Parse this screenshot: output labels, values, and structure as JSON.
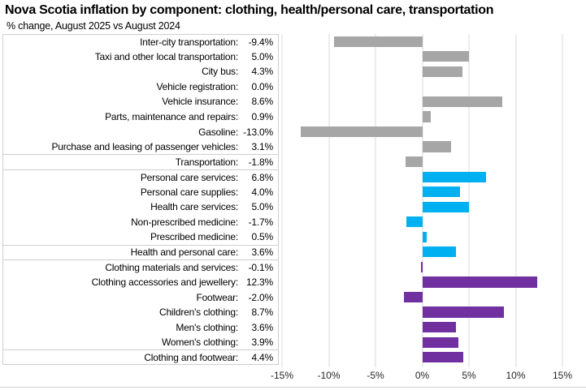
{
  "title": "Nova Scotia inflation by component: clothing, health/personal care, transportation",
  "subtitle": "% change, August 2025 vs August 2024",
  "colors": {
    "transportation": "#a6a6a6",
    "health_personal_care": "#00b0f0",
    "clothing": "#7030a0",
    "gridline": "#d9d9d9",
    "box_border": "#d0cece"
  },
  "chart_data": {
    "type": "bar",
    "orientation": "horizontal",
    "title": "Nova Scotia inflation by component: clothing, health/personal care, transportation",
    "subtitle": "% change, August 2025 vs August 2024",
    "unit": "%",
    "xlim": [
      -15,
      15
    ],
    "x_ticks": [
      "-15%",
      "-10%",
      "-5%",
      "0%",
      "5%",
      "10%",
      "15%"
    ],
    "grid": "vertical",
    "legend": "none",
    "rows": [
      {
        "label": "Inter-city transportation:",
        "value": -9.4,
        "display": "-9.4%",
        "group": "transportation",
        "summary": false
      },
      {
        "label": "Taxi and other local transportation:",
        "value": 5.0,
        "display": "5.0%",
        "group": "transportation",
        "summary": false
      },
      {
        "label": "City bus:",
        "value": 4.3,
        "display": "4.3%",
        "group": "transportation",
        "summary": false
      },
      {
        "label": "Vehicle registration:",
        "value": 0.0,
        "display": "0.0%",
        "group": "transportation",
        "summary": false
      },
      {
        "label": "Vehicle insurance:",
        "value": 8.6,
        "display": "8.6%",
        "group": "transportation",
        "summary": false
      },
      {
        "label": "Parts, maintenance and repairs:",
        "value": 0.9,
        "display": "0.9%",
        "group": "transportation",
        "summary": false
      },
      {
        "label": "Gasoline:",
        "value": -13.0,
        "display": "-13.0%",
        "group": "transportation",
        "summary": false
      },
      {
        "label": "Purchase and leasing of passenger vehicles:",
        "value": 3.1,
        "display": "3.1%",
        "group": "transportation",
        "summary": false
      },
      {
        "label": "Transportation:",
        "value": -1.8,
        "display": "-1.8%",
        "group": "transportation",
        "summary": true
      },
      {
        "label": "Personal care services:",
        "value": 6.8,
        "display": "6.8%",
        "group": "health_personal_care",
        "summary": false
      },
      {
        "label": "Personal care supplies:",
        "value": 4.0,
        "display": "4.0%",
        "group": "health_personal_care",
        "summary": false
      },
      {
        "label": "Health care services:",
        "value": 5.0,
        "display": "5.0%",
        "group": "health_personal_care",
        "summary": false
      },
      {
        "label": "Non-prescribed medicine:",
        "value": -1.7,
        "display": "-1.7%",
        "group": "health_personal_care",
        "summary": false
      },
      {
        "label": "Prescribed medicine:",
        "value": 0.5,
        "display": "0.5%",
        "group": "health_personal_care",
        "summary": false
      },
      {
        "label": "Health and personal care:",
        "value": 3.6,
        "display": "3.6%",
        "group": "health_personal_care",
        "summary": true
      },
      {
        "label": "Clothing materials and services:",
        "value": -0.1,
        "display": "-0.1%",
        "group": "clothing",
        "summary": false
      },
      {
        "label": "Clothing accessories and jewellery:",
        "value": 12.3,
        "display": "12.3%",
        "group": "clothing",
        "summary": false
      },
      {
        "label": "Footwear:",
        "value": -2.0,
        "display": "-2.0%",
        "group": "clothing",
        "summary": false
      },
      {
        "label": "Children's clothing:",
        "value": 8.7,
        "display": "8.7%",
        "group": "clothing",
        "summary": false
      },
      {
        "label": "Men's clothing:",
        "value": 3.6,
        "display": "3.6%",
        "group": "clothing",
        "summary": false
      },
      {
        "label": "Women's clothing:",
        "value": 3.9,
        "display": "3.9%",
        "group": "clothing",
        "summary": false
      },
      {
        "label": "Clothing and footwear:",
        "value": 4.4,
        "display": "4.4%",
        "group": "clothing",
        "summary": true
      }
    ]
  }
}
